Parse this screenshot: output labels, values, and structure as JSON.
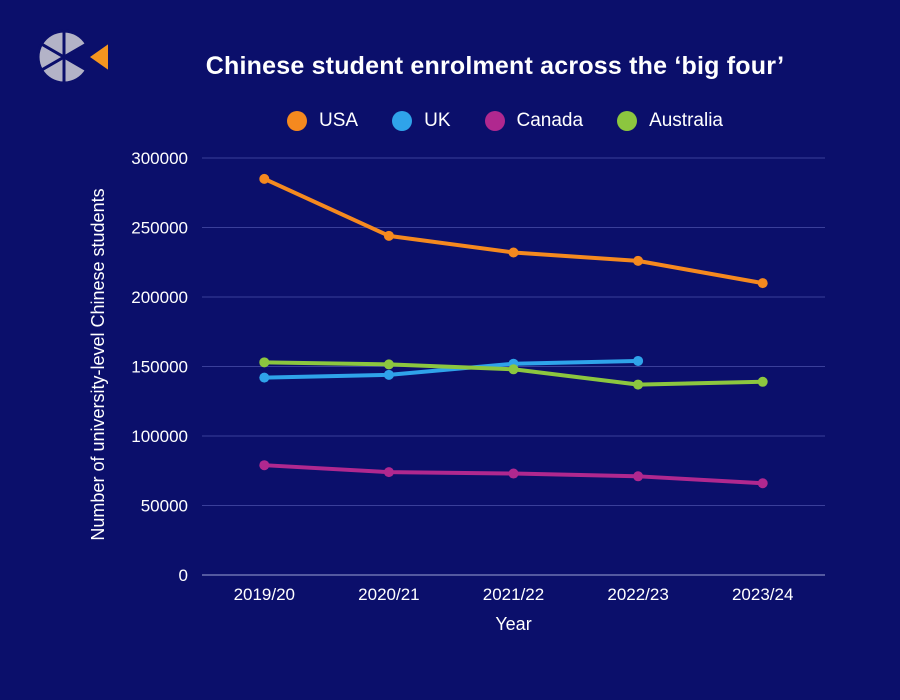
{
  "colors": {
    "background": "#0b0f6b",
    "gridline": "#3a3f9a",
    "axis": "#9ea3d6",
    "text": "#ffffff"
  },
  "logo": {
    "icon": "segmented-circle-logo",
    "colors": [
      "#b3b3c7",
      "#f5951f"
    ]
  },
  "chart_data": {
    "type": "line",
    "title": "Chinese student enrolment across the ‘big four’",
    "xlabel": "Year",
    "ylabel": "Number of university-level Chinese students",
    "categories": [
      "2019/20",
      "2020/21",
      "2021/22",
      "2022/23",
      "2023/24"
    ],
    "ylim": [
      0,
      300000
    ],
    "yticks": [
      0,
      50000,
      100000,
      150000,
      200000,
      250000,
      300000
    ],
    "ytick_labels": [
      "0",
      "50000",
      "100000",
      "150000",
      "200000",
      "250000",
      "300000"
    ],
    "grid": true,
    "legend_position": "top",
    "series": [
      {
        "name": "USA",
        "color": "#f5891f",
        "values": [
          285000,
          244000,
          232000,
          226000,
          210000
        ]
      },
      {
        "name": "UK",
        "color": "#2fa3ea",
        "values": [
          142000,
          144000,
          152000,
          154000,
          null
        ]
      },
      {
        "name": "Canada",
        "color": "#b0288f",
        "values": [
          79000,
          74000,
          73000,
          71000,
          66000
        ]
      },
      {
        "name": "Australia",
        "color": "#8cc63f",
        "values": [
          153000,
          151500,
          148000,
          137000,
          139000
        ]
      }
    ]
  }
}
